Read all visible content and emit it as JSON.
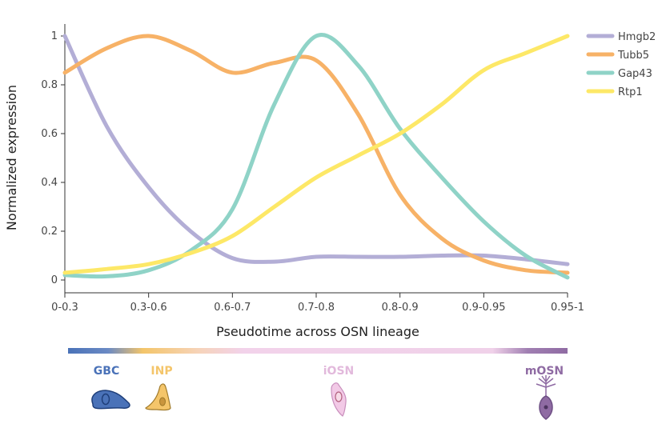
{
  "chart_data": {
    "type": "line",
    "xlabel": "Pseudotime across OSN lineage",
    "ylabel": "Normalized expression",
    "ylim": [
      0,
      1
    ],
    "yticks": [
      "0",
      "0.2",
      "0.4",
      "0.6",
      "0.8",
      "1"
    ],
    "categories": [
      "0-0.3",
      "0.3-0.6",
      "0.6-0.7",
      "0.7-0.8",
      "0.8-0.9",
      "0.9-0.95",
      "0.95-1"
    ],
    "legend_position": "top-right",
    "grid": false,
    "series": [
      {
        "name": "Hmgb2",
        "color": "#b3aed6",
        "x": [
          0,
          0.5,
          1,
          1.5,
          2,
          2.5,
          3,
          3.5,
          4,
          4.5,
          5,
          5.5,
          6
        ],
        "values": [
          1.0,
          0.63,
          0.38,
          0.2,
          0.09,
          0.075,
          0.095,
          0.095,
          0.095,
          0.1,
          0.1,
          0.085,
          0.065
        ]
      },
      {
        "name": "Tubb5",
        "color": "#f7b267",
        "x": [
          0,
          0.5,
          1,
          1.5,
          2,
          2.5,
          3,
          3.5,
          4,
          4.5,
          5,
          5.5,
          6
        ],
        "values": [
          0.85,
          0.95,
          1.0,
          0.94,
          0.85,
          0.89,
          0.9,
          0.68,
          0.35,
          0.17,
          0.08,
          0.04,
          0.03
        ]
      },
      {
        "name": "Gap43",
        "color": "#8fd3c7",
        "x": [
          0,
          0.5,
          1,
          1.5,
          2,
          2.5,
          3,
          3.5,
          4,
          4.5,
          5,
          5.5,
          6
        ],
        "values": [
          0.02,
          0.015,
          0.04,
          0.12,
          0.29,
          0.72,
          1.0,
          0.88,
          0.62,
          0.42,
          0.24,
          0.1,
          0.01
        ]
      },
      {
        "name": "Rtp1",
        "color": "#fde867",
        "x": [
          0,
          0.5,
          1,
          1.5,
          2,
          2.5,
          3,
          3.5,
          4,
          4.5,
          5,
          5.5,
          6
        ],
        "values": [
          0.03,
          0.045,
          0.065,
          0.11,
          0.18,
          0.3,
          0.42,
          0.51,
          0.6,
          0.72,
          0.86,
          0.93,
          1.0
        ]
      }
    ]
  },
  "stages": [
    {
      "label": "GBC",
      "color": "#4a72b8",
      "icon": "gbc-cell-icon"
    },
    {
      "label": "INP",
      "color": "#f4c56a",
      "icon": "inp-cell-icon"
    },
    {
      "label": "iOSN",
      "color": "#e2b9dc",
      "icon": "iosn-cell-icon"
    },
    {
      "label": "mOSN",
      "color": "#8f6ba3",
      "icon": "mosn-neuron-icon"
    }
  ]
}
